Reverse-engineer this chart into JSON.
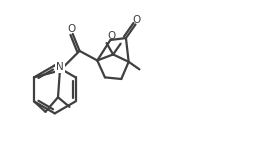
{
  "bg_color": "#ffffff",
  "line_color": "#404040",
  "line_width": 1.6,
  "figsize": [
    2.76,
    1.46
  ],
  "dpi": 100,
  "xlim": [
    0,
    10
  ],
  "ylim": [
    0,
    5.3
  ]
}
